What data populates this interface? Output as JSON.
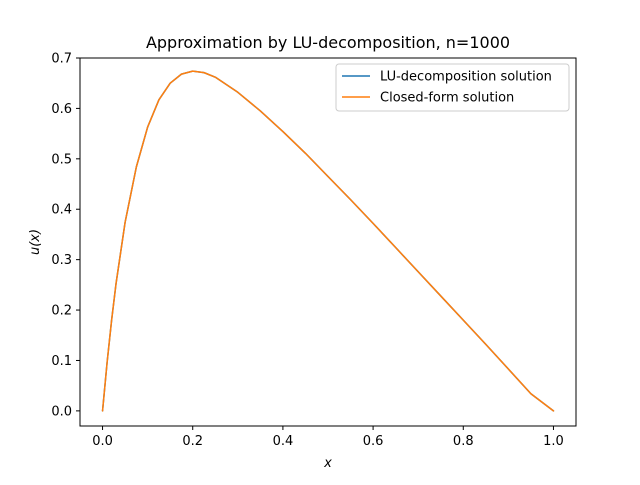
{
  "chart_data": {
    "type": "line",
    "title": "Approximation by LU-decomposition, n=1000",
    "xlabel": "x",
    "ylabel": "u(x)",
    "xlim": [
      -0.05,
      1.05
    ],
    "ylim": [
      -0.03,
      0.7
    ],
    "xticks": [
      0.0,
      0.2,
      0.4,
      0.6,
      0.8,
      1.0
    ],
    "xtick_labels": [
      "0.0",
      "0.2",
      "0.4",
      "0.6",
      "0.8",
      "1.0"
    ],
    "yticks": [
      0.0,
      0.1,
      0.2,
      0.3,
      0.4,
      0.5,
      0.6,
      0.7
    ],
    "ytick_labels": [
      "0.0",
      "0.1",
      "0.2",
      "0.3",
      "0.4",
      "0.5",
      "0.6",
      "0.7"
    ],
    "grid": false,
    "legend_position": "top-right",
    "x": [
      0.0,
      0.01,
      0.02,
      0.03,
      0.05,
      0.075,
      0.1,
      0.125,
      0.15,
      0.175,
      0.2,
      0.225,
      0.25,
      0.3,
      0.35,
      0.4,
      0.45,
      0.5,
      0.55,
      0.6,
      0.65,
      0.7,
      0.75,
      0.8,
      0.85,
      0.9,
      0.95,
      1.0
    ],
    "series": [
      {
        "name": "LU-decomposition solution",
        "color": "#1f77b4",
        "values": [
          0.0,
          0.095,
          0.179,
          0.253,
          0.374,
          0.484,
          0.563,
          0.617,
          0.65,
          0.668,
          0.674,
          0.671,
          0.662,
          0.632,
          0.595,
          0.554,
          0.511,
          0.465,
          0.419,
          0.372,
          0.324,
          0.276,
          0.228,
          0.18,
          0.132,
          0.083,
          0.034,
          0.0
        ]
      },
      {
        "name": "Closed-form solution",
        "color": "#ff7f0e",
        "values": [
          0.0,
          0.095,
          0.179,
          0.253,
          0.374,
          0.484,
          0.563,
          0.617,
          0.65,
          0.668,
          0.674,
          0.671,
          0.662,
          0.632,
          0.595,
          0.554,
          0.511,
          0.465,
          0.419,
          0.372,
          0.324,
          0.276,
          0.228,
          0.18,
          0.132,
          0.083,
          0.034,
          0.0
        ]
      }
    ]
  }
}
